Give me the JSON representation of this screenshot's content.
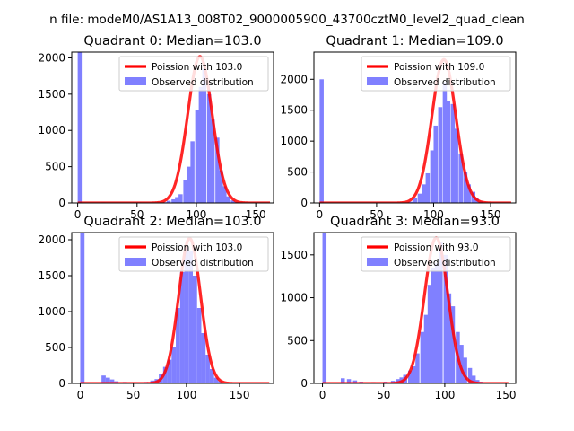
{
  "figure": {
    "suptitle": "n file: modeM0/AS1A13_008T02_9000005900_43700cztM0_level2_quad_clean"
  },
  "colors": {
    "poisson": "#ff0000",
    "observed": "#8080ff",
    "axis": "#000000"
  },
  "chart_data": [
    {
      "type": "bar",
      "title": "Quadrant 0: Median=103.0",
      "xlim": [
        -5,
        165
      ],
      "ylim": [
        0,
        2080
      ],
      "xticks": [
        0,
        50,
        100,
        150
      ],
      "yticks": [
        0,
        500,
        1000,
        1500,
        2000
      ],
      "legend_placement": "upper-right",
      "series": [
        {
          "name": "Poission with 103.0",
          "kind": "line",
          "mu": 103.0,
          "peak": 2020,
          "sigma": 10.3,
          "x_range": [
            0,
            162
          ]
        },
        {
          "name": "Observed distribution",
          "kind": "histogram",
          "bin_width": 3.4,
          "bins": [
            [
              0,
              2080
            ],
            [
              20,
              8
            ],
            [
              50,
              8
            ],
            [
              72,
              10
            ],
            [
              75,
              30
            ],
            [
              79,
              50
            ],
            [
              82,
              80
            ],
            [
              85,
              120
            ],
            [
              89,
              320
            ],
            [
              92,
              500
            ],
            [
              95,
              850
            ],
            [
              99,
              1280
            ],
            [
              102,
              1600
            ],
            [
              105,
              1850
            ],
            [
              109,
              1500
            ],
            [
              112,
              1150
            ],
            [
              116,
              900
            ],
            [
              119,
              450
            ],
            [
              122,
              230
            ],
            [
              125,
              90
            ],
            [
              129,
              35
            ],
            [
              132,
              12
            ]
          ]
        }
      ]
    },
    {
      "type": "bar",
      "title": "Quadrant 1: Median=109.0",
      "xlim": [
        -5,
        172
      ],
      "ylim": [
        0,
        2440
      ],
      "xticks": [
        0,
        50,
        100,
        150
      ],
      "yticks": [
        0,
        500,
        1000,
        1500,
        2000
      ],
      "legend_placement": "upper-right",
      "series": [
        {
          "name": "Poission with 109.0",
          "kind": "line",
          "mu": 109.0,
          "peak": 2320,
          "sigma": 10.5,
          "x_range": [
            0,
            168
          ]
        },
        {
          "name": "Observed distribution",
          "kind": "histogram",
          "bin_width": 3.6,
          "bins": [
            [
              0,
              2000
            ],
            [
              78,
              20
            ],
            [
              82,
              80
            ],
            [
              86,
              150
            ],
            [
              90,
              300
            ],
            [
              93,
              480
            ],
            [
              97,
              850
            ],
            [
              100,
              1250
            ],
            [
              104,
              1550
            ],
            [
              108,
              1950
            ],
            [
              111,
              1650
            ],
            [
              115,
              1600
            ],
            [
              118,
              1200
            ],
            [
              122,
              800
            ],
            [
              126,
              500
            ],
            [
              129,
              300
            ],
            [
              133,
              180
            ],
            [
              136,
              70
            ],
            [
              140,
              30
            ]
          ]
        }
      ]
    },
    {
      "type": "bar",
      "title": "Quadrant 2: Median=103.0",
      "xlim": [
        -8,
        182
      ],
      "ylim": [
        0,
        2100
      ],
      "xticks": [
        0,
        50,
        100,
        150
      ],
      "yticks": [
        0,
        500,
        1000,
        1500,
        2000
      ],
      "legend_placement": "upper-right",
      "series": [
        {
          "name": "Poission with 103.0",
          "kind": "line",
          "mu": 103.0,
          "peak": 2020,
          "sigma": 10.3,
          "x_range": [
            0,
            178
          ]
        },
        {
          "name": "Observed distribution",
          "kind": "histogram",
          "bin_width": 4.0,
          "bins": [
            [
              0,
              2100
            ],
            [
              20,
              110
            ],
            [
              24,
              80
            ],
            [
              28,
              55
            ],
            [
              32,
              30
            ],
            [
              40,
              20
            ],
            [
              50,
              15
            ],
            [
              60,
              20
            ],
            [
              66,
              40
            ],
            [
              70,
              60
            ],
            [
              74,
              130
            ],
            [
              78,
              230
            ],
            [
              82,
              330
            ],
            [
              86,
              500
            ],
            [
              90,
              1050
            ],
            [
              94,
              1550
            ],
            [
              98,
              1900
            ],
            [
              102,
              1850
            ],
            [
              106,
              1500
            ],
            [
              110,
              1050
            ],
            [
              114,
              700
            ],
            [
              118,
              400
            ],
            [
              122,
              200
            ],
            [
              126,
              80
            ],
            [
              130,
              30
            ]
          ]
        }
      ]
    },
    {
      "type": "bar",
      "title": "Quadrant 3: Median=93.0",
      "xlim": [
        -7,
        158
      ],
      "ylim": [
        0,
        1760
      ],
      "xticks": [
        0,
        50,
        100,
        150
      ],
      "yticks": [
        0,
        500,
        1000,
        1500
      ],
      "legend_placement": "upper-right",
      "series": [
        {
          "name": "Poission with 93.0",
          "kind": "line",
          "mu": 93.0,
          "peak": 1700,
          "sigma": 9.6,
          "x_range": [
            0,
            152
          ]
        },
        {
          "name": "Observed distribution",
          "kind": "histogram",
          "bin_width": 3.3,
          "bins": [
            [
              0,
              1760
            ],
            [
              15,
              60
            ],
            [
              20,
              50
            ],
            [
              25,
              35
            ],
            [
              30,
              20
            ],
            [
              40,
              15
            ],
            [
              50,
              20
            ],
            [
              56,
              30
            ],
            [
              60,
              50
            ],
            [
              63,
              70
            ],
            [
              66,
              100
            ],
            [
              70,
              150
            ],
            [
              73,
              200
            ],
            [
              76,
              350
            ],
            [
              80,
              600
            ],
            [
              83,
              800
            ],
            [
              86,
              1150
            ],
            [
              89,
              1350
            ],
            [
              92,
              1400
            ],
            [
              95,
              1650
            ],
            [
              99,
              1500
            ],
            [
              102,
              1050
            ],
            [
              105,
              900
            ],
            [
              109,
              600
            ],
            [
              112,
              450
            ],
            [
              115,
              300
            ],
            [
              119,
              180
            ],
            [
              122,
              90
            ],
            [
              125,
              40
            ],
            [
              128,
              20
            ]
          ]
        }
      ]
    }
  ]
}
